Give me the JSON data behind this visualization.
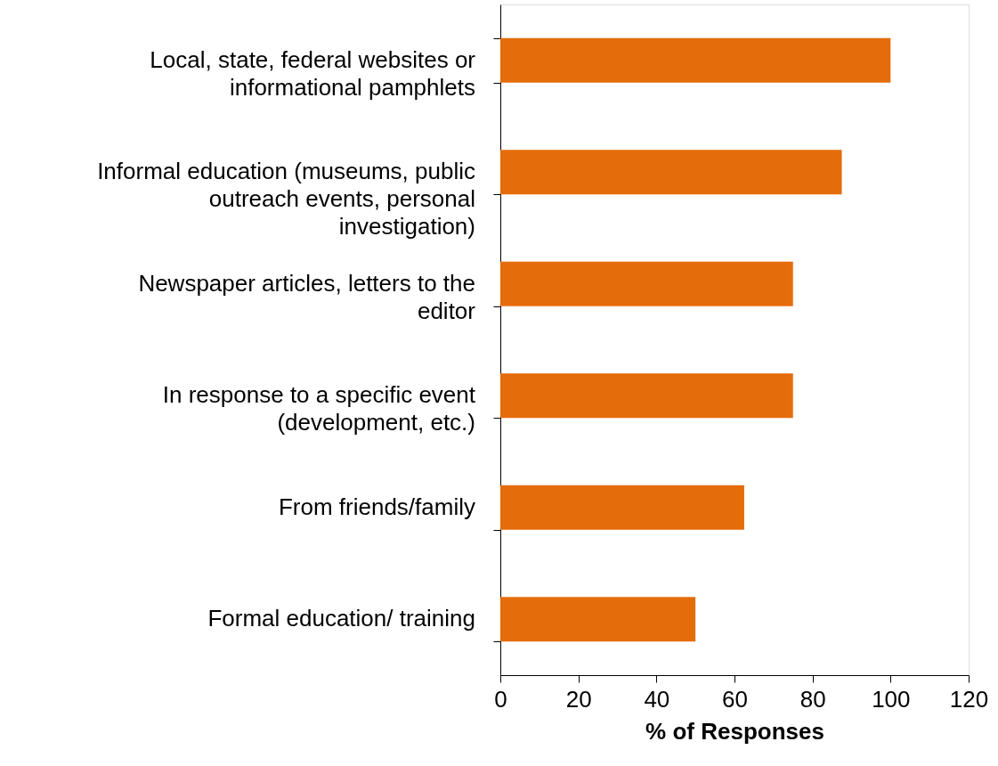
{
  "chart_data": {
    "type": "bar",
    "orientation": "horizontal",
    "xlabel": "% of Responses",
    "categories": [
      "Local, state, federal websites or informational pamphlets",
      "Informal education (museums, public outreach events, personal investigation)",
      "Newspaper articles, letters to the editor",
      "In response to a specific event (development, etc.)",
      "From friends/family",
      "Formal education/ training"
    ],
    "values": [
      100,
      87.5,
      75,
      75,
      62.5,
      50
    ],
    "color": "#e46c0a",
    "xlim": [
      0,
      120
    ],
    "xticks": [
      0,
      20,
      40,
      60,
      80,
      100,
      120
    ],
    "grid": false
  }
}
